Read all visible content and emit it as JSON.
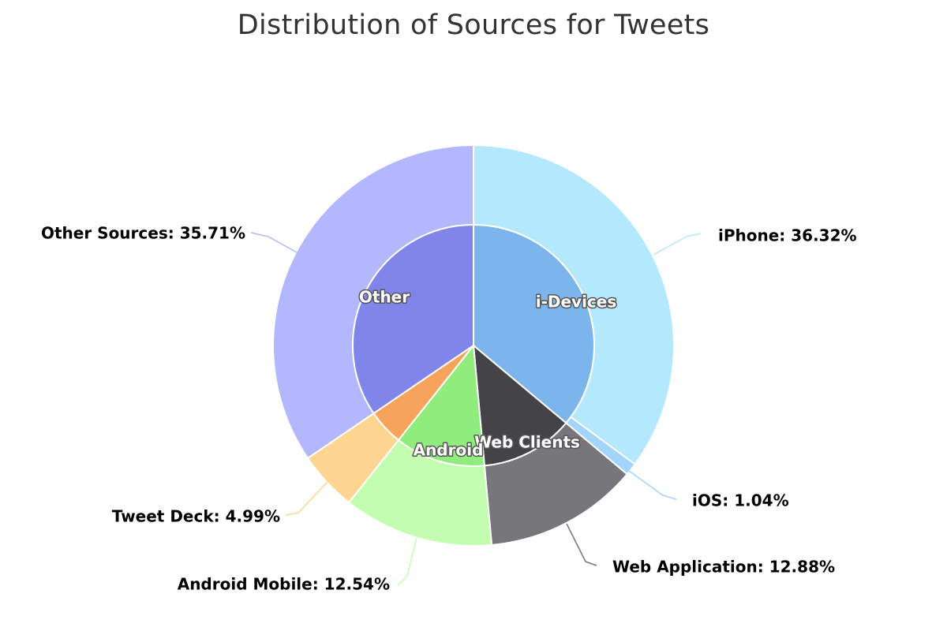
{
  "chart_data": {
    "type": "pie",
    "title": "Distribution of Sources for Tweets",
    "inner_ring": [
      {
        "name": "i-Devices",
        "value": 37.36,
        "color": "#7cb5ec"
      },
      {
        "name": "Web Clients",
        "value": 12.88,
        "color": "#434348"
      },
      {
        "name": "Android",
        "value": 12.54,
        "color": "#90ed7d"
      },
      {
        "name": "",
        "value": 4.99,
        "color": "#f7a35c"
      },
      {
        "name": "Other",
        "value": 35.71,
        "color": "#8085e9"
      }
    ],
    "outer_ring": [
      {
        "name": "iPhone",
        "value": 36.32,
        "label": "iPhone: 36.32%",
        "color": "#b3e8fd"
      },
      {
        "name": "iOS",
        "value": 1.04,
        "label": "iOS: 1.04%",
        "color": "#a2d4fd"
      },
      {
        "name": "Web Application",
        "value": 12.88,
        "label": "Web Application: 12.88%",
        "color": "#76767b"
      },
      {
        "name": "Android Mobile",
        "value": 12.54,
        "label": "Android Mobile: 12.54%",
        "color": "#c3feb0"
      },
      {
        "name": "Tweet Deck",
        "value": 4.99,
        "label": "Tweet Deck: 4.99%",
        "color": "#fed691"
      },
      {
        "name": "Other Sources",
        "value": 35.71,
        "label": "Other Sources: 35.71%",
        "color": "#b3b8fe"
      }
    ],
    "connector_colors": [
      "#b3e8fd",
      "#a2d4fd",
      "#76767b",
      "#c3feb0",
      "#fed691",
      "#b3b8fe"
    ]
  }
}
